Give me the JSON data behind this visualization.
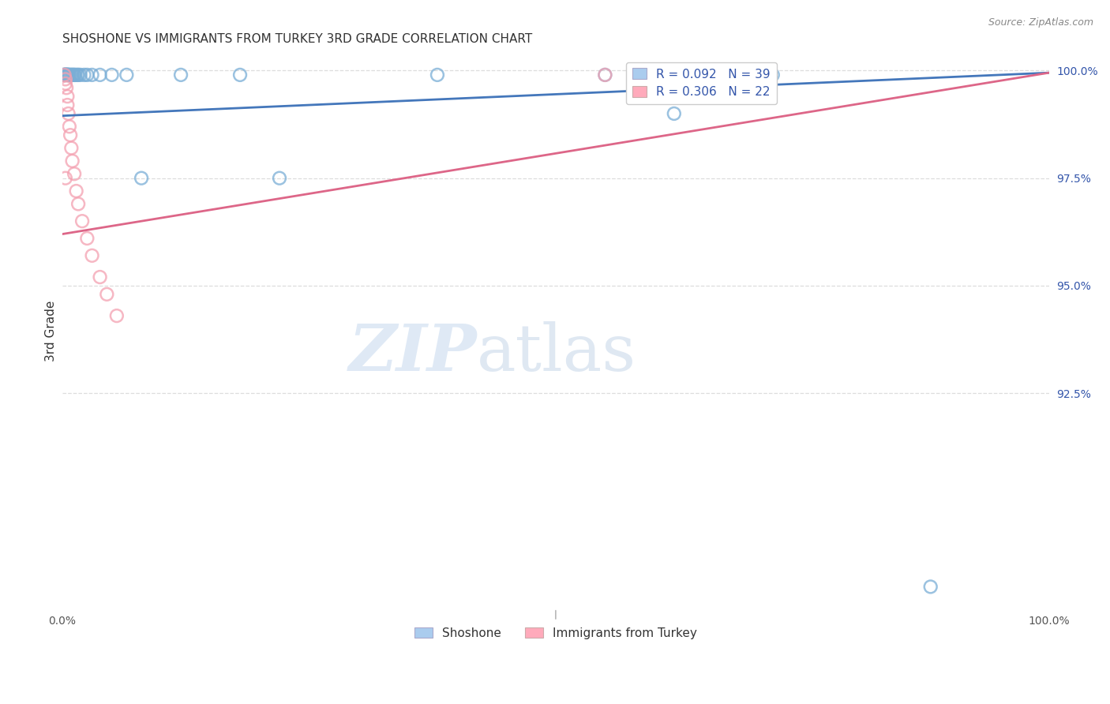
{
  "title": "SHOSHONE VS IMMIGRANTS FROM TURKEY 3RD GRADE CORRELATION CHART",
  "source": "Source: ZipAtlas.com",
  "ylabel": "3rd Grade",
  "ylabel_right_ticks": [
    "100.0%",
    "97.5%",
    "95.0%",
    "92.5%"
  ],
  "ylabel_right_values": [
    1.0,
    0.975,
    0.95,
    0.925
  ],
  "legend_label1": "Shoshone",
  "legend_label2": "Immigrants from Turkey",
  "R1": 0.092,
  "N1": 39,
  "R2": 0.306,
  "N2": 22,
  "watermark_zip": "ZIP",
  "watermark_atlas": "atlas",
  "blue_scatter_color": "#7aaed6",
  "pink_scatter_color": "#f4a0b0",
  "blue_line_color": "#4477bb",
  "pink_line_color": "#dd6688",
  "blue_legend_color": "#aaccee",
  "pink_legend_color": "#ffaabb",
  "grid_color": "#dddddd",
  "right_tick_color": "#3355aa",
  "title_color": "#333333",
  "source_color": "#888888",
  "shoshone_x": [
    0.001,
    0.002,
    0.002,
    0.003,
    0.003,
    0.003,
    0.003,
    0.004,
    0.004,
    0.005,
    0.005,
    0.005,
    0.006,
    0.006,
    0.007,
    0.008,
    0.009,
    0.01,
    0.011,
    0.012,
    0.013,
    0.015,
    0.016,
    0.018,
    0.022,
    0.025,
    0.03,
    0.038,
    0.05,
    0.065,
    0.08,
    0.12,
    0.18,
    0.22,
    0.38,
    0.55,
    0.62,
    0.72,
    0.88
  ],
  "shoshone_y": [
    0.999,
    0.999,
    0.999,
    0.999,
    0.999,
    0.999,
    0.999,
    0.999,
    0.999,
    0.999,
    0.999,
    0.999,
    0.999,
    0.999,
    0.999,
    0.999,
    0.999,
    0.999,
    0.999,
    0.999,
    0.999,
    0.999,
    0.999,
    0.999,
    0.999,
    0.999,
    0.999,
    0.999,
    0.999,
    0.999,
    0.975,
    0.999,
    0.999,
    0.975,
    0.999,
    0.999,
    0.99,
    0.999,
    0.88
  ],
  "turkey_x": [
    0.002,
    0.003,
    0.003,
    0.004,
    0.005,
    0.005,
    0.006,
    0.007,
    0.008,
    0.009,
    0.01,
    0.012,
    0.014,
    0.016,
    0.02,
    0.025,
    0.03,
    0.038,
    0.045,
    0.055,
    0.55,
    0.003
  ],
  "turkey_y": [
    0.999,
    0.998,
    0.997,
    0.996,
    0.994,
    0.992,
    0.99,
    0.987,
    0.985,
    0.982,
    0.979,
    0.976,
    0.972,
    0.969,
    0.965,
    0.961,
    0.957,
    0.952,
    0.948,
    0.943,
    0.999,
    0.975
  ],
  "blue_line_x0": 0.0,
  "blue_line_x1": 1.0,
  "blue_line_y0": 0.9895,
  "blue_line_y1": 0.9995,
  "pink_line_x0": 0.0,
  "pink_line_x1": 1.0,
  "pink_line_y0": 0.962,
  "pink_line_y1": 0.9995,
  "xmin": 0.0,
  "xmax": 1.0,
  "ymin": 0.875,
  "ymax": 1.004
}
